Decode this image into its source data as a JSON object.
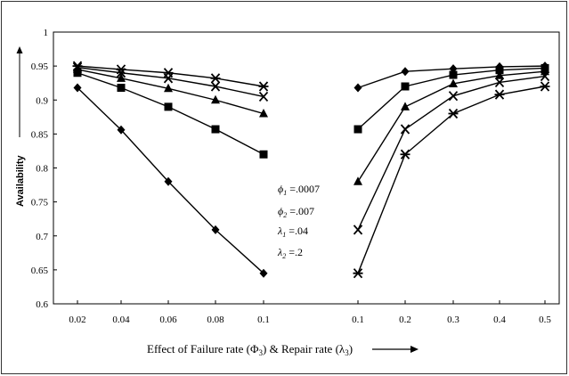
{
  "chart_data": {
    "type": "line",
    "ylabel": "Availability",
    "xlabel_parts": [
      "Effect of Failure rate (",
      "Φ",
      "3",
      ") & Repair rate (",
      "λ",
      "3",
      ")"
    ],
    "ylim": [
      0.6,
      1
    ],
    "yticks": [
      "0.6",
      "0.65",
      "0.7",
      "0.75",
      "0.8",
      "0.85",
      "0.9",
      "0.95",
      "1"
    ],
    "grid": false,
    "panels": [
      {
        "name": "failure-rate",
        "x_ticks": [
          "0.02",
          "0.04",
          "0.06",
          "0.08",
          "0.1"
        ],
        "series": [
          {
            "marker": "star",
            "values": [
              0.95,
              0.945,
              0.94,
              0.932,
              0.92
            ]
          },
          {
            "marker": "x",
            "values": [
              0.948,
              0.94,
              0.932,
              0.92,
              0.905
            ]
          },
          {
            "marker": "triangle",
            "values": [
              0.945,
              0.932,
              0.917,
              0.9,
              0.88
            ]
          },
          {
            "marker": "square",
            "values": [
              0.94,
              0.918,
              0.89,
              0.857,
              0.82
            ]
          },
          {
            "marker": "diamond",
            "values": [
              0.918,
              0.856,
              0.78,
              0.709,
              0.645
            ]
          }
        ]
      },
      {
        "name": "repair-rate",
        "x_ticks": [
          "0.1",
          "0.2",
          "0.3",
          "0.4",
          "0.5"
        ],
        "series": [
          {
            "marker": "diamond",
            "values": [
              0.918,
              0.942,
              0.946,
              0.949,
              0.95
            ]
          },
          {
            "marker": "square",
            "values": [
              0.857,
              0.92,
              0.937,
              0.944,
              0.947
            ]
          },
          {
            "marker": "triangle",
            "values": [
              0.78,
              0.89,
              0.924,
              0.936,
              0.942
            ]
          },
          {
            "marker": "x",
            "values": [
              0.709,
              0.857,
              0.906,
              0.926,
              0.935
            ]
          },
          {
            "marker": "star",
            "values": [
              0.645,
              0.82,
              0.88,
              0.908,
              0.92
            ]
          }
        ]
      }
    ],
    "parameters": [
      {
        "symbol": "ϕ",
        "sub": "1",
        "value": "=.0007"
      },
      {
        "symbol": "ϕ",
        "sub": "2",
        "value": "=.007"
      },
      {
        "symbol": "λ",
        "sub": "1",
        "value": "=.04"
      },
      {
        "symbol": "λ",
        "sub": "2",
        "value": "=.2"
      }
    ]
  }
}
